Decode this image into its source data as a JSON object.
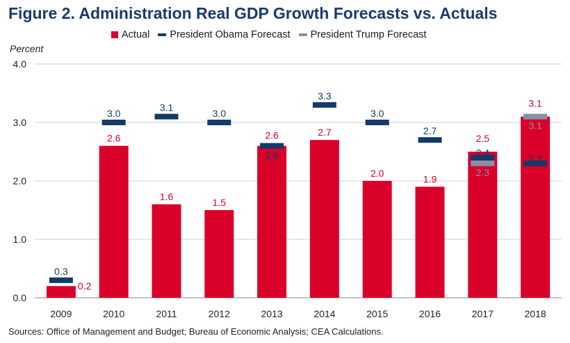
{
  "colors": {
    "actual": "#d9002a",
    "obama": "#14396b",
    "trump": "#8593a3",
    "grid": "#cfcfcf",
    "title": "#1a3a6b"
  },
  "chart_data": {
    "type": "bar",
    "title": "Figure 2. Administration Real GDP Growth Forecasts vs. Actuals",
    "ylabel": "Percent",
    "xlabel": "",
    "ylim": [
      0,
      4
    ],
    "yticks": [
      "0.0",
      "1.0",
      "2.0",
      "3.0",
      "4.0"
    ],
    "grid": true,
    "legend": {
      "position": "top",
      "entries": [
        "Actual",
        "President Obama Forecast",
        "President Trump Forecast"
      ]
    },
    "categories": [
      "2009",
      "2010",
      "2011",
      "2012",
      "2013",
      "2014",
      "2015",
      "2016",
      "2017",
      "2018"
    ],
    "series": [
      {
        "name": "Actual",
        "values": [
          0.2,
          2.6,
          1.6,
          1.5,
          2.6,
          2.7,
          2.0,
          1.9,
          2.5,
          3.1
        ]
      },
      {
        "name": "President Obama Forecast",
        "values": [
          0.3,
          3.0,
          3.1,
          3.0,
          2.6,
          3.3,
          3.0,
          2.7,
          2.4,
          2.3
        ]
      },
      {
        "name": "President Trump Forecast",
        "values": [
          null,
          null,
          null,
          null,
          null,
          null,
          null,
          null,
          2.3,
          3.1
        ]
      }
    ],
    "source": "Sources: Office of Management and Budget; Bureau of Economic Analysis; CEA Calculations."
  }
}
